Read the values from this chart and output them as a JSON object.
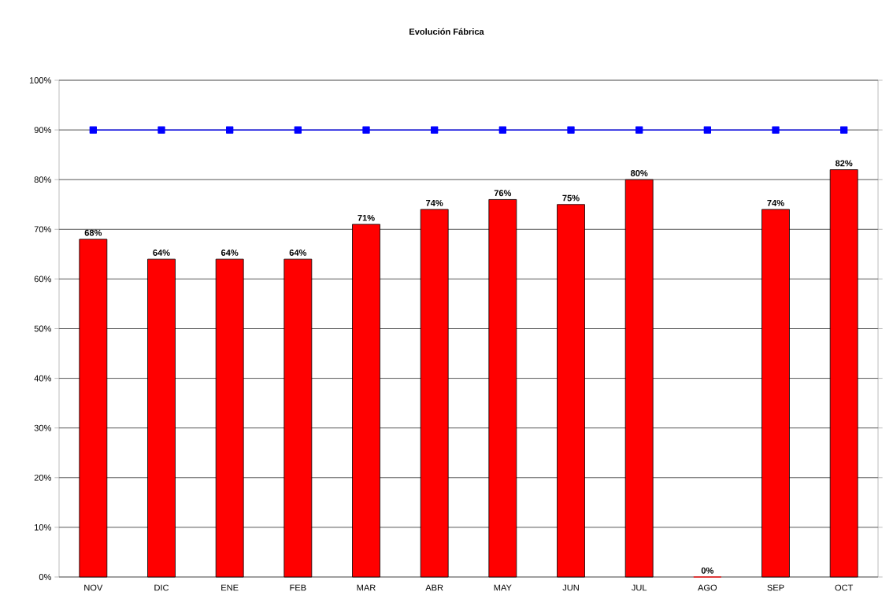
{
  "chart_data": {
    "type": "bar",
    "title": "Evolución Fábrica",
    "categories": [
      "NOV",
      "DIC",
      "ENE",
      "FEB",
      "MAR",
      "ABR",
      "MAY",
      "JUN",
      "JUL",
      "AGO",
      "SEP",
      "OCT"
    ],
    "series": [
      {
        "color": "#ff0000",
        "values": [
          68,
          64,
          64,
          64,
          71,
          74,
          76,
          75,
          80,
          0,
          74,
          82
        ],
        "value_labels": [
          "68%",
          "64%",
          "64%",
          "64%",
          "71%",
          "74%",
          "76%",
          "75%",
          "80%",
          "0%",
          "74%",
          "82%"
        ]
      },
      {
        "type": "line",
        "color": "#0000ff",
        "marker": "square",
        "values": [
          90,
          90,
          90,
          90,
          90,
          90,
          90,
          90,
          90,
          90,
          90,
          90
        ]
      }
    ],
    "ylim": [
      0,
      100
    ],
    "yticks": [
      {
        "value": 0,
        "label": "0%"
      },
      {
        "value": 10,
        "label": "10%"
      },
      {
        "value": 20,
        "label": "20%"
      },
      {
        "value": 30,
        "label": "30%"
      },
      {
        "value": 40,
        "label": "40%"
      },
      {
        "value": 50,
        "label": "50%"
      },
      {
        "value": 60,
        "label": "60%"
      },
      {
        "value": 70,
        "label": "70%"
      },
      {
        "value": 80,
        "label": "80%"
      },
      {
        "value": 90,
        "label": "90%"
      },
      {
        "value": 100,
        "label": "100%"
      }
    ],
    "grid": "y"
  }
}
